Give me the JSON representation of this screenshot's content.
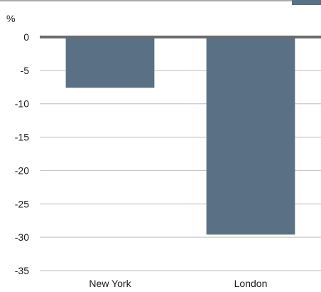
{
  "chart_data": {
    "type": "bar",
    "unit_label": "%",
    "categories": [
      "New York",
      "London"
    ],
    "values": [
      -7.6,
      -29.6
    ],
    "ylim": [
      -35,
      0
    ],
    "yticks": [
      0,
      -5,
      -10,
      -15,
      -20,
      -25,
      -30,
      -35
    ],
    "grid": true,
    "colors": {
      "bar": "#5a7185",
      "zero_line": "#6b6b6b",
      "grid": "#bdbdbd",
      "top_rule": "#555555"
    }
  }
}
